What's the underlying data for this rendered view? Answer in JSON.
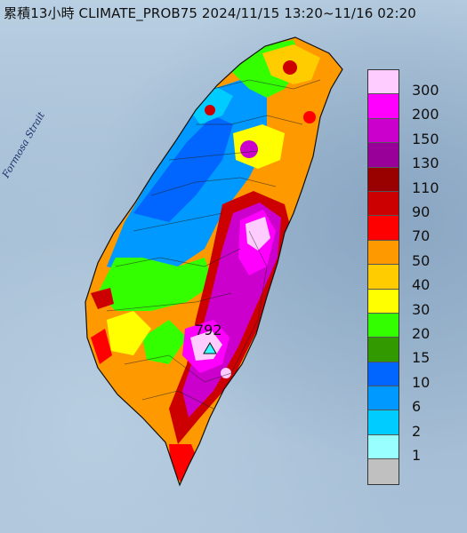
{
  "title": "累積13小時 CLIMATE_PROB75 2024/11/15 13:20~11/16 02:20",
  "strait_label": "Formosa Strait",
  "max_value": "792",
  "marker_icon": "triangle-station-icon",
  "legend": [
    {
      "label": "300",
      "color": "#ffccff"
    },
    {
      "label": "200",
      "color": "#ff00ff"
    },
    {
      "label": "150",
      "color": "#cc00cc"
    },
    {
      "label": "130",
      "color": "#990099"
    },
    {
      "label": "110",
      "color": "#990000"
    },
    {
      "label": "90",
      "color": "#cc0000"
    },
    {
      "label": "70",
      "color": "#ff0000"
    },
    {
      "label": "50",
      "color": "#ff9900"
    },
    {
      "label": "40",
      "color": "#ffcc00"
    },
    {
      "label": "30",
      "color": "#ffff00"
    },
    {
      "label": "20",
      "color": "#33ff00"
    },
    {
      "label": "15",
      "color": "#339900"
    },
    {
      "label": "10",
      "color": "#0066ff"
    },
    {
      "label": "6",
      "color": "#0099ff"
    },
    {
      "label": "2",
      "color": "#00ccff"
    },
    {
      "label": "1",
      "color": "#99ffff"
    },
    {
      "label": "",
      "color": "#c0c0c0"
    }
  ]
}
